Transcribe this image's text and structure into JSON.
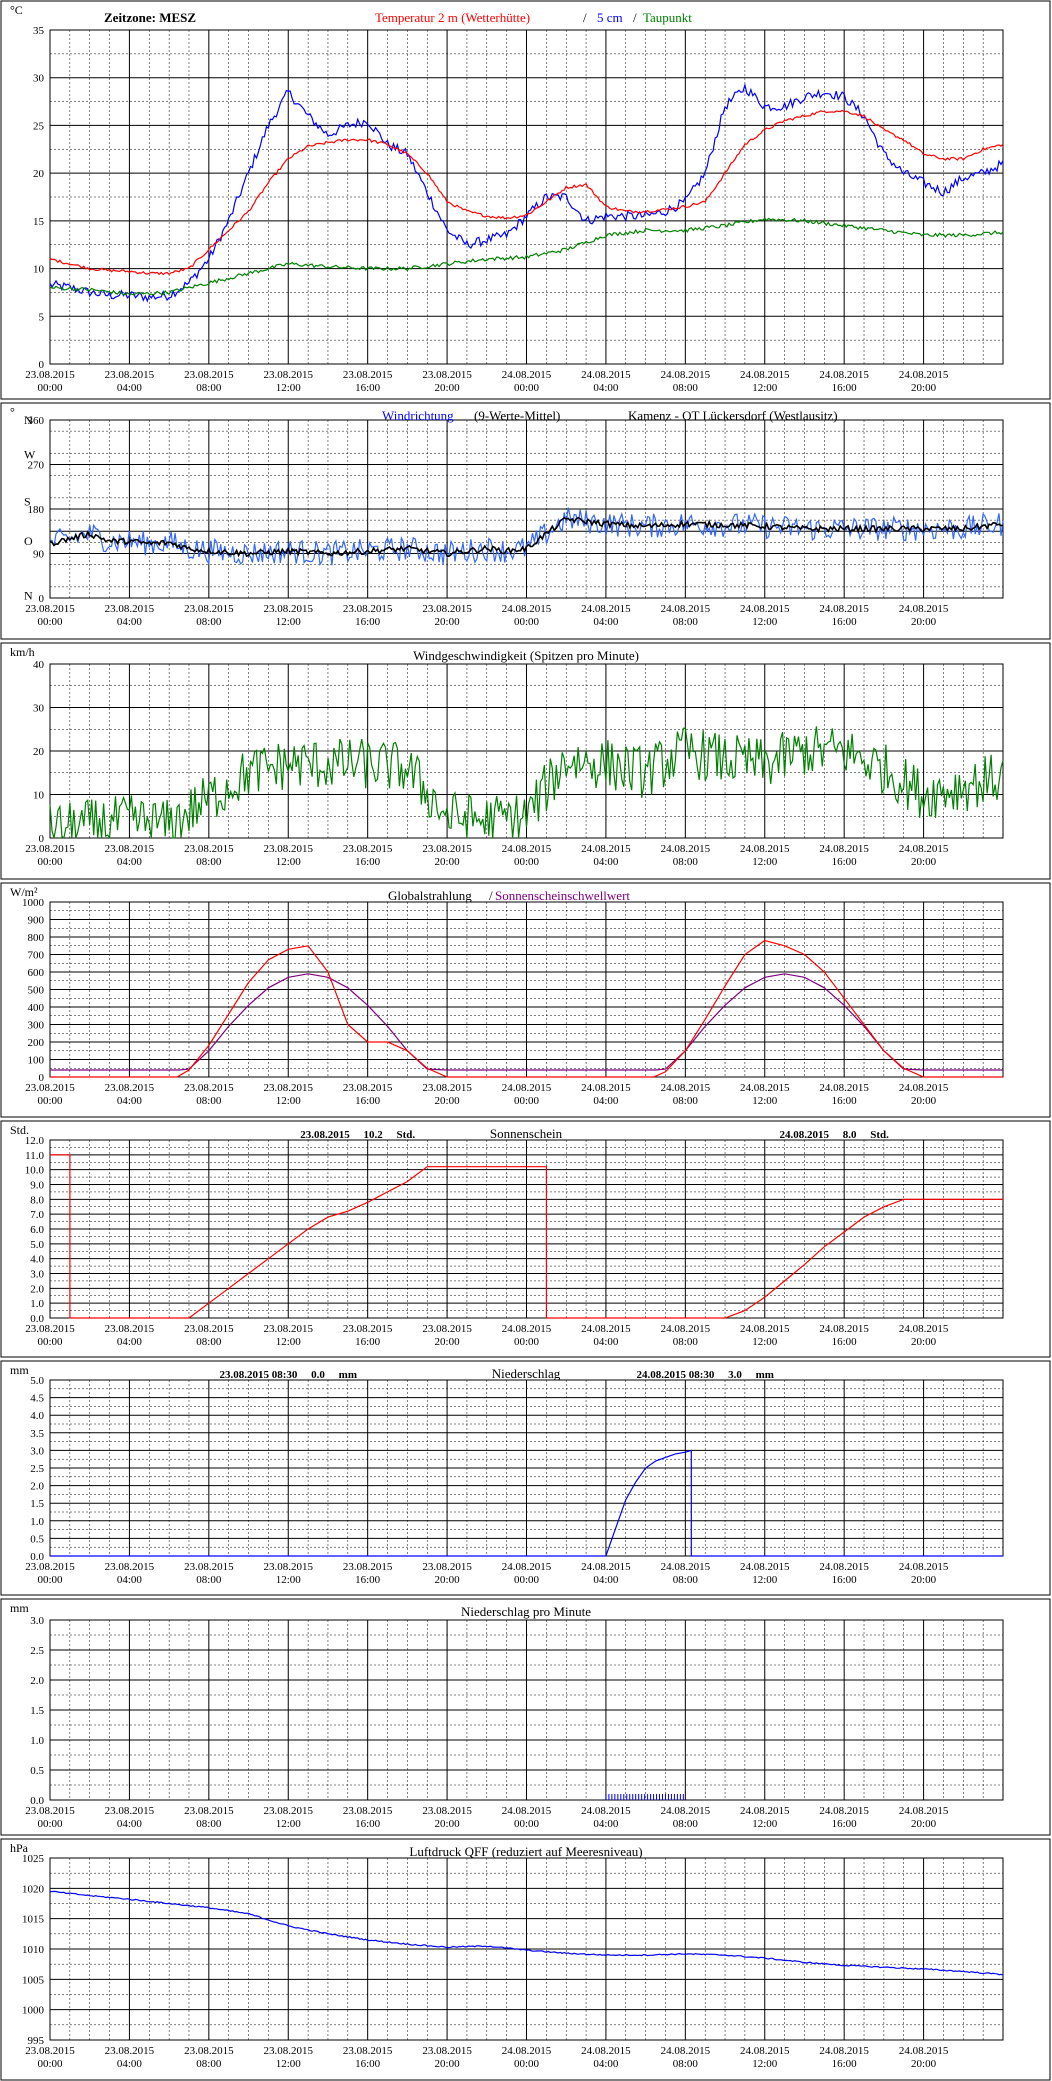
{
  "time_axis": {
    "labels": [
      [
        "23.08.2015",
        "00:00"
      ],
      [
        "23.08.2015",
        "04:00"
      ],
      [
        "23.08.2015",
        "08:00"
      ],
      [
        "23.08.2015",
        "12:00"
      ],
      [
        "23.08.2015",
        "16:00"
      ],
      [
        "23.08.2015",
        "20:00"
      ],
      [
        "24.08.2015",
        "00:00"
      ],
      [
        "24.08.2015",
        "04:00"
      ],
      [
        "24.08.2015",
        "08:00"
      ],
      [
        "24.08.2015",
        "12:00"
      ],
      [
        "24.08.2015",
        "16:00"
      ],
      [
        "24.08.2015",
        "20:00"
      ]
    ],
    "hours_total": 48
  },
  "chart_data": [
    {
      "id": "temperature",
      "type": "line",
      "title_parts": [
        {
          "text": "Zeitzone: MESZ",
          "color": "#000000"
        },
        {
          "text": "Temperatur 2 m (Wetterhütte)",
          "color": "#ff0000"
        },
        {
          "text": "/",
          "color": "#000000"
        },
        {
          "text": "5 cm",
          "color": "#0000ff"
        },
        {
          "text": "/",
          "color": "#000000"
        },
        {
          "text": "Taupunkt",
          "color": "#008000"
        }
      ],
      "unit_label": "°C",
      "ylim": [
        0,
        35
      ],
      "yticks": [
        "0",
        "5",
        "10",
        "15",
        "20",
        "25",
        "30",
        "35"
      ],
      "minor_steps": 7,
      "series": [
        {
          "color": "#0000ff",
          "noise": 0.5,
          "x": [
            0,
            1,
            2,
            3,
            4,
            5,
            6,
            7,
            8,
            9,
            10,
            11,
            12,
            13,
            14,
            15,
            16,
            17,
            18,
            19,
            20,
            21,
            22,
            23,
            24,
            25,
            26,
            27,
            28,
            29,
            30,
            31,
            32,
            33,
            34,
            35,
            36,
            37,
            38,
            39,
            40,
            41,
            42,
            43,
            44,
            45,
            46,
            47,
            48
          ],
          "y": [
            8.3,
            8,
            7.5,
            7.2,
            7.2,
            7,
            7.2,
            8.5,
            11,
            15,
            20,
            25,
            28.5,
            26,
            24,
            25,
            25.5,
            23,
            22,
            18,
            14,
            12.5,
            13,
            13.5,
            15.5,
            17.5,
            17.5,
            15,
            15.5,
            15.5,
            15.5,
            16,
            17,
            20,
            27,
            29,
            27,
            27,
            28,
            28.5,
            28,
            26,
            22,
            20,
            19,
            18,
            19.5,
            20,
            21
          ]
        },
        {
          "color": "#ff0000",
          "noise": 0.15,
          "x": [
            0,
            1,
            2,
            3,
            4,
            5,
            6,
            7,
            8,
            9,
            10,
            11,
            12,
            13,
            14,
            15,
            16,
            17,
            18,
            19,
            20,
            21,
            22,
            23,
            24,
            25,
            26,
            27,
            28,
            29,
            30,
            31,
            32,
            33,
            34,
            35,
            36,
            37,
            38,
            39,
            40,
            41,
            42,
            43,
            44,
            45,
            46,
            47,
            48
          ],
          "y": [
            11,
            10.5,
            10,
            9.8,
            9.7,
            9.5,
            9.5,
            10,
            12,
            14,
            16,
            19,
            21.5,
            22.8,
            23.2,
            23.5,
            23.5,
            23,
            22,
            20,
            17,
            16,
            15.5,
            15.3,
            15.6,
            17,
            18.5,
            18.8,
            16.5,
            16,
            16,
            16.2,
            16.5,
            17,
            20,
            23,
            24.5,
            25.5,
            26,
            26.5,
            26.5,
            26,
            24.5,
            23.5,
            22,
            21.5,
            21.5,
            22.5,
            23
          ]
        },
        {
          "color": "#008000",
          "noise": 0.2,
          "x": [
            0,
            2,
            4,
            6,
            8,
            10,
            12,
            14,
            16,
            18,
            20,
            22,
            24,
            26,
            28,
            30,
            32,
            34,
            36,
            38,
            40,
            42,
            44,
            46,
            48
          ],
          "y": [
            8,
            7.8,
            7.3,
            7.5,
            8.5,
            9.5,
            10.5,
            10.2,
            10,
            10,
            10.5,
            11,
            11.2,
            12,
            13.5,
            14,
            14,
            14.5,
            15.2,
            15,
            14.5,
            14,
            13.5,
            13.5,
            13.8
          ]
        }
      ]
    },
    {
      "id": "wind_direction",
      "type": "line",
      "title_parts": [
        {
          "text": "Windrichtung",
          "color": "#0000ff"
        },
        {
          "text": "(9-Werte-Mittel)",
          "color": "#000000"
        },
        {
          "text": "Kamenz - OT Lückersdorf (Westlausitz)",
          "color": "#000000"
        }
      ],
      "unit_label": "°",
      "ylim": [
        0,
        360
      ],
      "ytick_values": [
        0,
        90,
        135,
        180,
        270,
        360
      ],
      "ytick_labels": [
        "0",
        "90",
        "O",
        "180",
        "270",
        "360"
      ],
      "compass": [
        {
          "label": "N",
          "value": 360
        },
        {
          "label": "W",
          "value": 290
        },
        {
          "label": "S",
          "value": 195
        },
        {
          "label": "O",
          "value": 115
        },
        {
          "label": "N",
          "value": 5
        }
      ],
      "minor_steps": 8,
      "series": [
        {
          "color": "#3366ff",
          "noise": 25,
          "x": [
            0,
            1,
            2,
            3,
            4,
            5,
            6,
            7,
            8,
            10,
            12,
            14,
            16,
            18,
            20,
            22,
            23,
            24,
            25,
            26,
            28,
            30,
            32,
            34,
            36,
            38,
            40,
            42,
            44,
            46,
            48
          ],
          "y": [
            110,
            120,
            130,
            115,
            115,
            110,
            112,
            100,
            95,
            90,
            95,
            90,
            95,
            100,
            90,
            100,
            95,
            100,
            130,
            160,
            150,
            145,
            150,
            148,
            145,
            140,
            140,
            140,
            140,
            140,
            150
          ]
        },
        {
          "color": "#000000",
          "noise": 6,
          "x": [
            0,
            1,
            2,
            3,
            4,
            5,
            6,
            7,
            8,
            10,
            12,
            14,
            16,
            18,
            20,
            22,
            23,
            24,
            25,
            26,
            28,
            30,
            32,
            34,
            36,
            38,
            40,
            42,
            44,
            46,
            48
          ],
          "y": [
            110,
            120,
            130,
            115,
            115,
            110,
            112,
            100,
            95,
            90,
            95,
            90,
            95,
            100,
            90,
            100,
            95,
            100,
            130,
            160,
            150,
            145,
            150,
            148,
            145,
            140,
            140,
            140,
            140,
            140,
            150
          ]
        }
      ]
    },
    {
      "id": "wind_speed",
      "type": "line",
      "title_parts": [
        {
          "text": "Windgeschwindigkeit (Spitzen pro Minute)",
          "color": "#000000"
        }
      ],
      "unit_label": "km/h",
      "ylim": [
        0,
        40
      ],
      "yticks": [
        "0",
        "10",
        "20",
        "30",
        "40"
      ],
      "minor_steps": 8,
      "series": [
        {
          "color": "#008000",
          "noise": 6,
          "x": [
            0,
            2,
            4,
            6,
            8,
            10,
            12,
            14,
            16,
            18,
            20,
            22,
            24,
            26,
            28,
            30,
            32,
            34,
            36,
            38,
            40,
            42,
            44,
            46,
            48
          ],
          "y": [
            2,
            3,
            4,
            3,
            9,
            15,
            17,
            17,
            17,
            16,
            5,
            4,
            5,
            18,
            17,
            15,
            20,
            18,
            17,
            20,
            20,
            16,
            10,
            12,
            14
          ]
        }
      ]
    },
    {
      "id": "radiation",
      "type": "line",
      "title_parts": [
        {
          "text": "Globalstrahlung",
          "color": "#000000"
        },
        {
          "text": "/",
          "color": "#000000"
        },
        {
          "text": "Sonnenscheinschwellwert",
          "color": "#800080"
        }
      ],
      "unit_label": "W/m²",
      "ylim": [
        0,
        1000
      ],
      "yticks": [
        "0",
        "100",
        "200",
        "300",
        "400",
        "500",
        "600",
        "700",
        "800",
        "900",
        "1000"
      ],
      "minor_steps": 10,
      "series": [
        {
          "color": "#800080",
          "noise": 0,
          "x": [
            0,
            6.5,
            7,
            8,
            9,
            10,
            11,
            12,
            13,
            14,
            15,
            16,
            17,
            18,
            19,
            20,
            30.5,
            31,
            32,
            33,
            34,
            35,
            36,
            37,
            38,
            39,
            40,
            41,
            42,
            43,
            44,
            48
          ],
          "y": [
            40,
            40,
            45,
            150,
            290,
            410,
            510,
            570,
            590,
            570,
            510,
            410,
            290,
            150,
            45,
            40,
            40,
            45,
            150,
            290,
            410,
            510,
            570,
            590,
            570,
            510,
            410,
            290,
            150,
            45,
            40,
            40
          ]
        },
        {
          "color": "#ff0000",
          "noise": 0,
          "x": [
            0,
            6.4,
            7,
            8,
            9,
            10,
            11,
            12,
            13,
            14,
            14.5,
            15,
            16,
            17,
            18,
            19,
            20,
            30.4,
            31,
            32,
            33,
            34,
            35,
            36,
            37,
            38,
            39,
            40,
            41,
            42,
            43,
            44,
            48
          ],
          "y": [
            0,
            0,
            40,
            180,
            360,
            540,
            670,
            730,
            750,
            600,
            450,
            300,
            200,
            200,
            150,
            50,
            0,
            0,
            30,
            150,
            330,
            520,
            700,
            780,
            750,
            700,
            600,
            450,
            300,
            150,
            50,
            0,
            0
          ]
        }
      ]
    },
    {
      "id": "sunshine",
      "type": "line",
      "title_parts": [
        {
          "text": "Sonnenschein",
          "color": "#000000"
        }
      ],
      "annotations": [
        {
          "text": "23.08.2015     10.2     Std.",
          "at_hour": 15.5
        },
        {
          "text": "24.08.2015     8.0     Std.",
          "at_hour": 39.5
        }
      ],
      "unit_label": "Std.",
      "ylim": [
        0,
        12
      ],
      "yticks": [
        "0.0",
        "1.0",
        "2.0",
        "3.0",
        "4.0",
        "5.0",
        "6.0",
        "7.0",
        "8.0",
        "9.0",
        "10.0",
        "11.0",
        "12.0"
      ],
      "minor_steps": 12,
      "series": [
        {
          "color": "#ff0000",
          "noise": 0,
          "x": [
            0,
            1,
            1,
            7,
            8,
            9,
            10,
            11,
            12,
            13,
            14,
            15,
            16,
            17,
            18,
            19,
            20,
            25,
            25,
            34,
            35,
            36,
            37,
            38,
            39,
            40,
            41,
            42,
            43,
            44,
            48
          ],
          "y": [
            11,
            11,
            0,
            0,
            1,
            2,
            3,
            4,
            5,
            6,
            6.8,
            7.2,
            7.8,
            8.5,
            9.2,
            10.2,
            10.2,
            10.2,
            0,
            0,
            0.5,
            1.4,
            2.5,
            3.6,
            4.8,
            5.8,
            6.8,
            7.5,
            8,
            8,
            8
          ]
        }
      ]
    },
    {
      "id": "precipitation",
      "type": "line",
      "title_parts": [
        {
          "text": "Niederschlag",
          "color": "#000000"
        }
      ],
      "annotations": [
        {
          "text": "23.08.2015 08:30     0.0     mm",
          "at_hour": 12
        },
        {
          "text": "24.08.2015 08:30     3.0     mm",
          "at_hour": 33
        }
      ],
      "unit_label": "mm",
      "ylim": [
        0,
        5
      ],
      "yticks": [
        "0.0",
        "0.5",
        "1.0",
        "1.5",
        "2.0",
        "2.5",
        "3.0",
        "3.5",
        "4.0",
        "4.5",
        "5.0"
      ],
      "minor_steps": 10,
      "series": [
        {
          "color": "#0000ff",
          "noise": 0,
          "x": [
            0,
            28,
            28.5,
            29,
            29.5,
            30,
            30.5,
            31,
            31.5,
            32,
            32.3,
            32.3,
            48
          ],
          "y": [
            0,
            0,
            0.8,
            1.6,
            2.1,
            2.5,
            2.7,
            2.8,
            2.9,
            2.95,
            3.0,
            0,
            0
          ]
        }
      ]
    },
    {
      "id": "precipitation_minute",
      "type": "bar",
      "title_parts": [
        {
          "text": "Niederschlag pro Minute",
          "color": "#000000"
        }
      ],
      "unit_label": "mm",
      "ylim": [
        0,
        3
      ],
      "yticks": [
        "0.0",
        "0.5",
        "1.0",
        "1.5",
        "2.0",
        "2.5",
        "3.0"
      ],
      "minor_steps": 6,
      "bars": {
        "color": "#0000ff",
        "x_from": 28,
        "x_to": 32,
        "value": 0.1
      }
    },
    {
      "id": "pressure",
      "type": "line",
      "title_parts": [
        {
          "text": "Luftdruck QFF (reduziert auf Meeresniveau)",
          "color": "#000000"
        }
      ],
      "unit_label": "hPa",
      "ylim": [
        995,
        1025
      ],
      "yticks": [
        "995",
        "1000",
        "1005",
        "1010",
        "1015",
        "1020",
        "1025"
      ],
      "minor_steps": 12,
      "series": [
        {
          "color": "#0000ff",
          "noise": 0.1,
          "x": [
            0,
            2,
            4,
            6,
            8,
            10,
            12,
            14,
            16,
            18,
            20,
            22,
            24,
            26,
            28,
            30,
            32,
            34,
            36,
            38,
            40,
            42,
            44,
            46,
            48
          ],
          "y": [
            1019.5,
            1018.8,
            1018.2,
            1017.5,
            1016.8,
            1015.8,
            1013.8,
            1012.5,
            1011.5,
            1010.8,
            1010.3,
            1010.5,
            1009.8,
            1009.3,
            1009,
            1009,
            1009.2,
            1009,
            1008.5,
            1007.8,
            1007.3,
            1007,
            1006.7,
            1006.3,
            1005.8
          ]
        }
      ]
    }
  ]
}
